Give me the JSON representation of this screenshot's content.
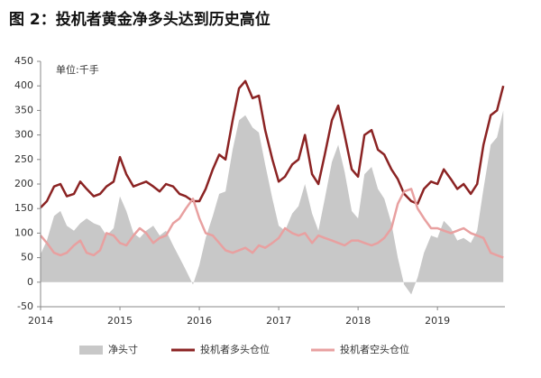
{
  "chart_data": {
    "type": "line",
    "title": "图 2：投机者黄金净多头达到历史高位",
    "unit_label": "单位:千手",
    "x": [
      2014,
      2014.08,
      2014.17,
      2014.25,
      2014.33,
      2014.42,
      2014.5,
      2014.58,
      2014.67,
      2014.75,
      2014.83,
      2014.92,
      2015,
      2015.08,
      2015.17,
      2015.25,
      2015.33,
      2015.42,
      2015.5,
      2015.58,
      2015.67,
      2015.75,
      2015.83,
      2015.92,
      2016,
      2016.08,
      2016.17,
      2016.25,
      2016.33,
      2016.42,
      2016.5,
      2016.58,
      2016.67,
      2016.75,
      2016.83,
      2016.92,
      2017,
      2017.08,
      2017.17,
      2017.25,
      2017.33,
      2017.42,
      2017.5,
      2017.58,
      2017.67,
      2017.75,
      2017.83,
      2017.92,
      2018,
      2018.08,
      2018.17,
      2018.25,
      2018.33,
      2018.42,
      2018.5,
      2018.58,
      2018.67,
      2018.75,
      2018.83,
      2018.92,
      2019,
      2019.08,
      2019.17,
      2019.25,
      2019.33,
      2019.42,
      2019.5,
      2019.58,
      2019.67,
      2019.75,
      2019.83
    ],
    "series": [
      {
        "name": "净头寸",
        "kind": "area",
        "color": "#c8c8c8",
        "values": [
          57,
          85,
          135,
          145,
          115,
          105,
          120,
          130,
          120,
          115,
          95,
          110,
          175,
          145,
          100,
          90,
          105,
          115,
          95,
          105,
          75,
          50,
          25,
          -5,
          35,
          90,
          135,
          180,
          185,
          270,
          330,
          340,
          315,
          305,
          240,
          170,
          115,
          105,
          140,
          155,
          200,
          140,
          105,
          170,
          245,
          280,
          225,
          145,
          130,
          220,
          235,
          190,
          170,
          120,
          50,
          -5,
          -25,
          10,
          60,
          95,
          90,
          125,
          110,
          85,
          90,
          80,
          105,
          190,
          280,
          295,
          350
        ]
      },
      {
        "name": "投机者多头仓位",
        "kind": "line",
        "color": "#8b2323",
        "values": [
          152,
          165,
          195,
          200,
          175,
          180,
          205,
          190,
          175,
          180,
          195,
          205,
          255,
          220,
          195,
          200,
          205,
          195,
          185,
          200,
          195,
          180,
          175,
          165,
          165,
          190,
          230,
          260,
          250,
          330,
          395,
          410,
          375,
          380,
          310,
          250,
          205,
          215,
          240,
          250,
          300,
          220,
          200,
          260,
          330,
          360,
          300,
          230,
          215,
          300,
          310,
          270,
          260,
          230,
          210,
          180,
          165,
          160,
          190,
          205,
          200,
          230,
          210,
          190,
          200,
          180,
          200,
          280,
          340,
          350,
          400
        ]
      },
      {
        "name": "投机者空头仓位",
        "kind": "line",
        "color": "#e8a0a0",
        "values": [
          95,
          80,
          60,
          55,
          60,
          75,
          85,
          60,
          55,
          65,
          100,
          95,
          80,
          75,
          95,
          110,
          100,
          80,
          90,
          95,
          120,
          130,
          150,
          170,
          130,
          100,
          95,
          80,
          65,
          60,
          65,
          70,
          60,
          75,
          70,
          80,
          90,
          110,
          100,
          95,
          100,
          80,
          95,
          90,
          85,
          80,
          75,
          85,
          85,
          80,
          75,
          80,
          90,
          110,
          160,
          185,
          190,
          150,
          130,
          110,
          110,
          105,
          100,
          105,
          110,
          100,
          95,
          90,
          60,
          55,
          50
        ]
      }
    ],
    "xlim": [
      2014,
      2019.85
    ],
    "xticks": [
      2014,
      2015,
      2016,
      2017,
      2018,
      2019
    ],
    "ylim": [
      -50,
      450
    ],
    "yticks": [
      -50,
      0,
      50,
      100,
      150,
      200,
      250,
      300,
      350,
      400,
      450
    ]
  }
}
